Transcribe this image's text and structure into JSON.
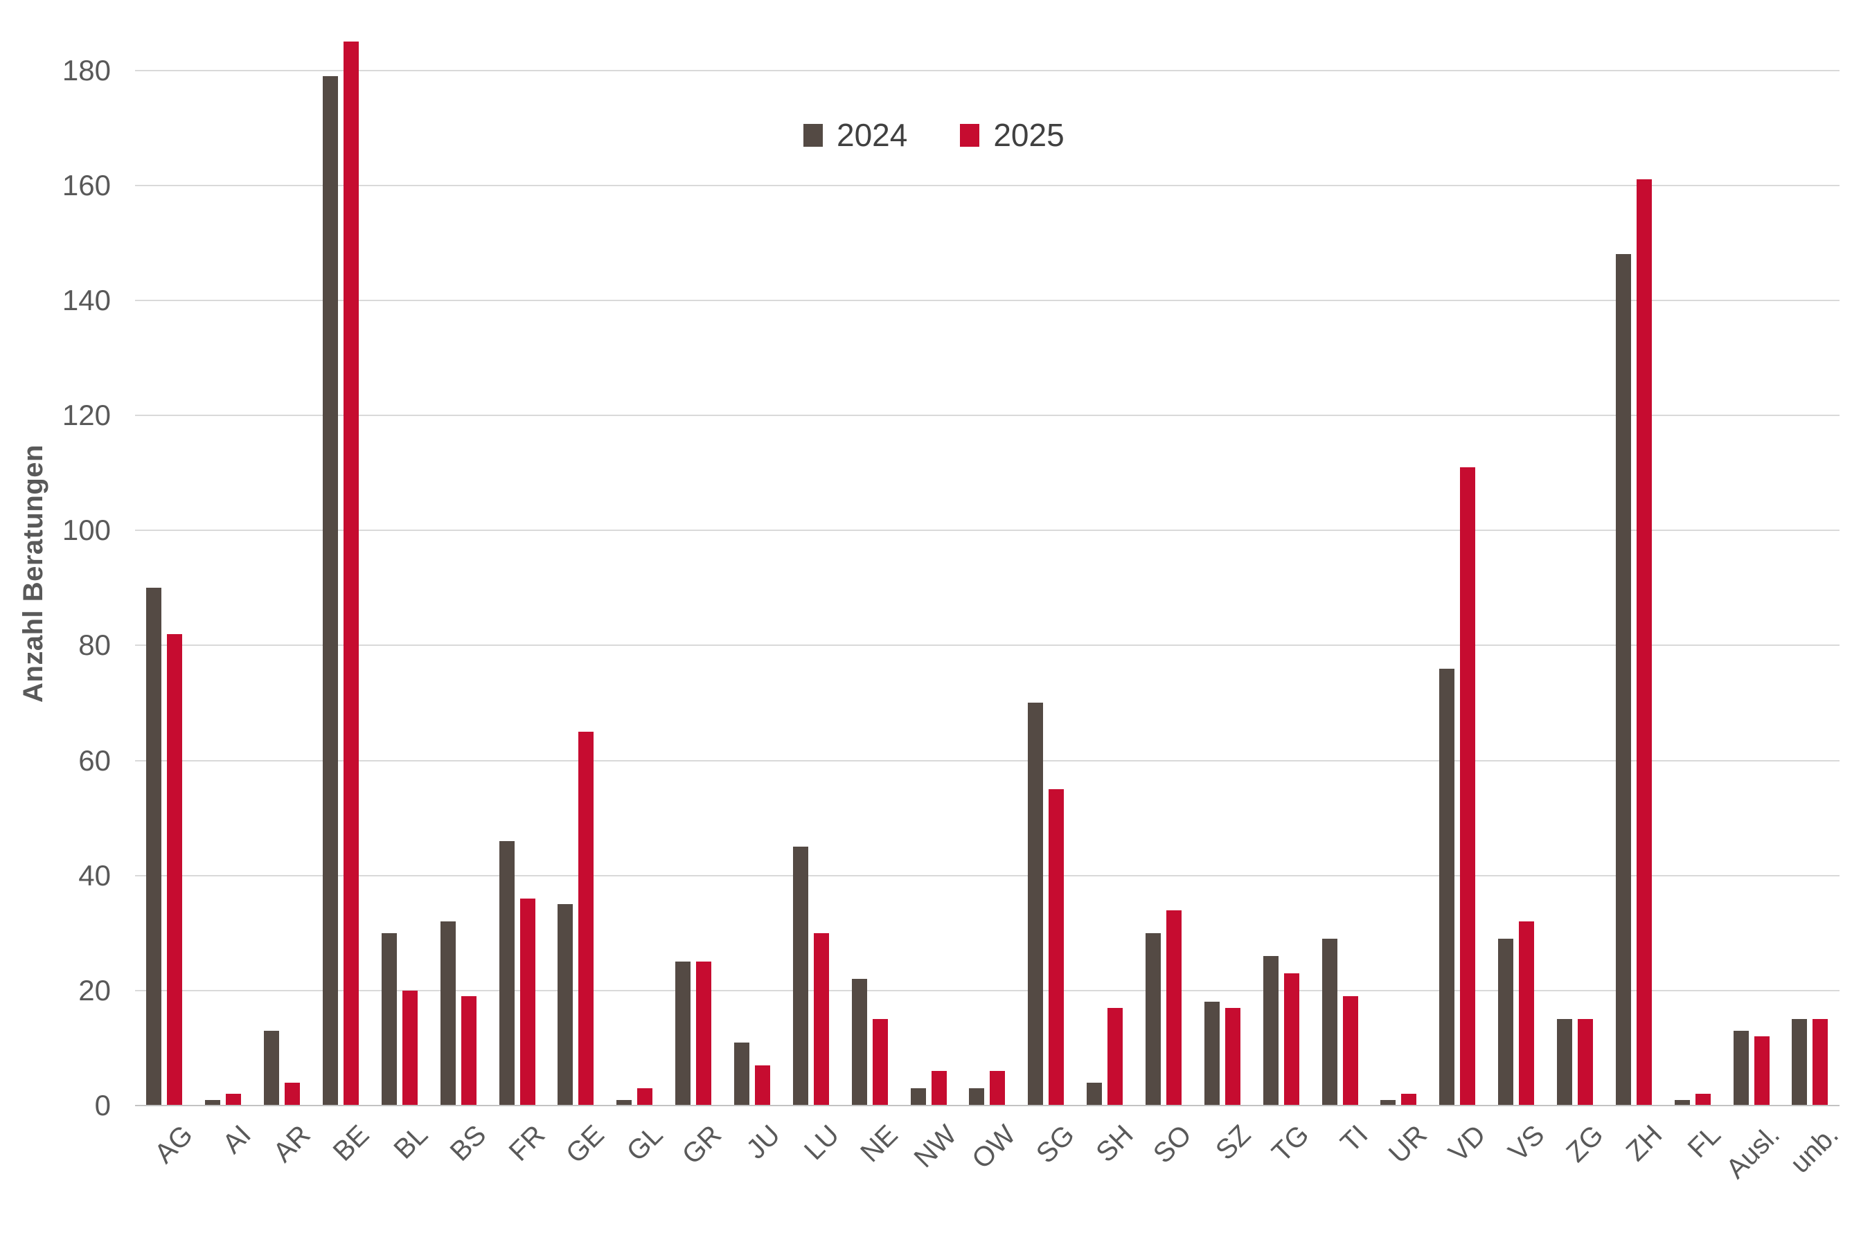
{
  "chart_data": {
    "type": "bar",
    "title": "",
    "xlabel": "",
    "ylabel": "Anzahl Beratungen",
    "grid": true,
    "legend_position": "top-center",
    "ylim": [
      0,
      185
    ],
    "yticks": [
      0,
      20,
      40,
      60,
      80,
      100,
      120,
      140,
      160,
      180
    ],
    "categories": [
      "AG",
      "AI",
      "AR",
      "BE",
      "BL",
      "BS",
      "FR",
      "GE",
      "GL",
      "GR",
      "JU",
      "LU",
      "NE",
      "NW",
      "OW",
      "SG",
      "SH",
      "SO",
      "SZ",
      "TG",
      "TI",
      "UR",
      "VD",
      "VS",
      "ZG",
      "ZH",
      "FL",
      "Ausl.",
      "unb."
    ],
    "series": [
      {
        "name": "2024",
        "color": "#544a44",
        "values": [
          90,
          1,
          13,
          179,
          30,
          32,
          46,
          35,
          1,
          25,
          11,
          45,
          22,
          3,
          3,
          70,
          4,
          30,
          18,
          26,
          29,
          1,
          76,
          29,
          15,
          148,
          1,
          13,
          15
        ]
      },
      {
        "name": "2025",
        "color": "#c60c30",
        "values": [
          82,
          2,
          4,
          185,
          20,
          19,
          36,
          65,
          3,
          25,
          7,
          30,
          15,
          6,
          6,
          55,
          17,
          34,
          17,
          23,
          19,
          2,
          111,
          32,
          15,
          161,
          2,
          12,
          15
        ]
      }
    ]
  },
  "colors": {
    "gridline": "#d9d9d9",
    "axis_line": "#c3c3c3",
    "text": "#595959"
  }
}
